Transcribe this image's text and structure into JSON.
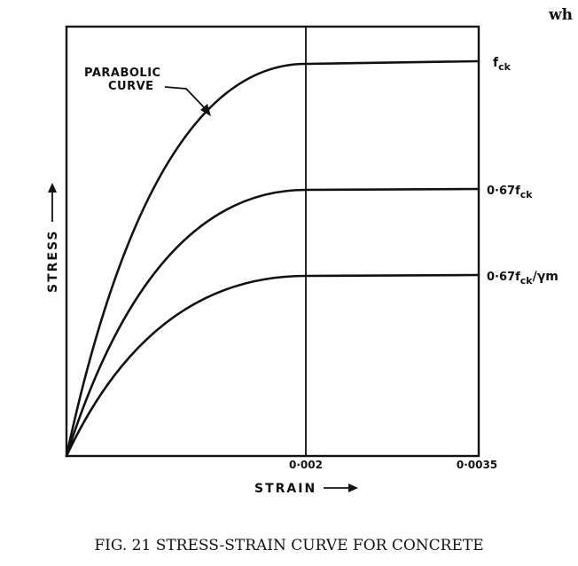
{
  "corner_text": "wh",
  "axes": {
    "y_label": "STRESS",
    "x_label": "STRAIN",
    "x_ticks": [
      "0·002",
      "0·0035"
    ]
  },
  "annotation": {
    "line1": "PARABOLIC",
    "line2": "CURVE"
  },
  "levels": {
    "top": {
      "main": "f",
      "sub": "ck"
    },
    "mid": {
      "prefix": "0·67f",
      "sub": "ck"
    },
    "low": {
      "prefix": "0·67f",
      "sub": "ck",
      "suffix": "/γm"
    }
  },
  "caption": "FIG. 21 STRESS-STRAIN CURVE FOR CONCRETE"
}
